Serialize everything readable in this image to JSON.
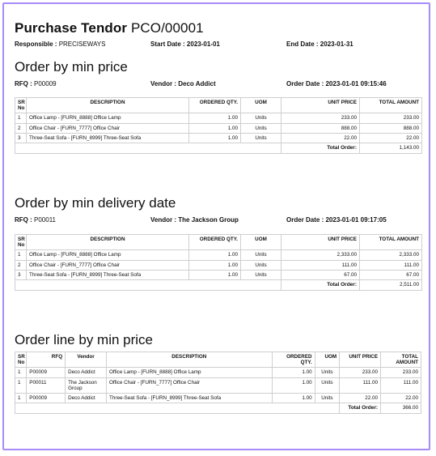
{
  "header": {
    "title": "Purchase Tendor",
    "reference": "PCO/00001",
    "responsible_label": "Responsible :",
    "responsible": "PRECISEWAYS",
    "start_label": "Start Date :",
    "start": "2023-01-01",
    "end_label": "End Date :",
    "end": "2023-01-31"
  },
  "sec1": {
    "title": "Order by min price",
    "rfq_label": "RFQ :",
    "rfq": "P00009",
    "vendor_label": "Vendor :",
    "vendor": "Deco Addict",
    "date_label": "Order Date :",
    "date": "2023-01-01 09:15:46",
    "headers": [
      "SR No",
      "DESCRIPTION",
      "ORDERED QTY.",
      "UOM",
      "UNIT PRICE",
      "TOTAL AMOUNT"
    ],
    "rows": [
      [
        "1",
        "Office Lamp - [FURN_8888] Office Lamp",
        "1.00",
        "Units",
        "233.00",
        "233.00"
      ],
      [
        "2",
        "Office Chair - [FURN_7777] Office Chair",
        "1.00",
        "Units",
        "888.00",
        "888.00"
      ],
      [
        "3",
        "Three-Seat Sofa - [FURN_8999] Three-Seat Sofa",
        "1.00",
        "Units",
        "22.00",
        "22.00"
      ]
    ],
    "total_label": "Total Order:",
    "total": "1,143.00"
  },
  "sec2": {
    "title": "Order by min delivery date",
    "rfq_label": "RFQ :",
    "rfq": "P00011",
    "vendor_label": "Vendor :",
    "vendor": "The Jackson Group",
    "date_label": "Order Date :",
    "date": "2023-01-01 09:17:05",
    "headers": [
      "SR No",
      "DESCRIPTION",
      "ORDERED QTY.",
      "UOM",
      "UNIT PRICE",
      "TOTAL AMOUNT"
    ],
    "rows": [
      [
        "1",
        "Office Lamp - [FURN_8888] Office Lamp",
        "1.00",
        "Units",
        "2,333.00",
        "2,333.00"
      ],
      [
        "2",
        "Office Chair - [FURN_7777] Office Chair",
        "1.00",
        "Units",
        "111.00",
        "111.00"
      ],
      [
        "3",
        "Three-Seat Sofa - [FURN_8999] Three-Seat Sofa",
        "1.00",
        "Units",
        "67.00",
        "67.00"
      ]
    ],
    "total_label": "Total Order:",
    "total": "2,511.00"
  },
  "sec3": {
    "title": "Order line by min price",
    "headers": [
      "SR No",
      "RFQ",
      "Vendor",
      "DESCRIPTION",
      "ORDERED QTY.",
      "UOM",
      "UNIT PRICE",
      "TOTAL AMOUNT"
    ],
    "rows": [
      [
        "1",
        "P00009",
        "Deco Addict",
        "Office Lamp - [FURN_8888] Office Lamp",
        "1.00",
        "Units",
        "233.00",
        "233.00"
      ],
      [
        "1",
        "P00011",
        "The Jackson Group",
        "Office Chair - [FURN_7777] Office Chair",
        "1.00",
        "Units",
        "111.00",
        "111.00"
      ],
      [
        "1",
        "P00009",
        "Deco Addict",
        "Three-Seat Sofa - [FURN_8999] Three-Seat Sofa",
        "1.00",
        "Units",
        "22.00",
        "22.00"
      ]
    ],
    "total_label": "Total Order:",
    "total": "366.00"
  }
}
